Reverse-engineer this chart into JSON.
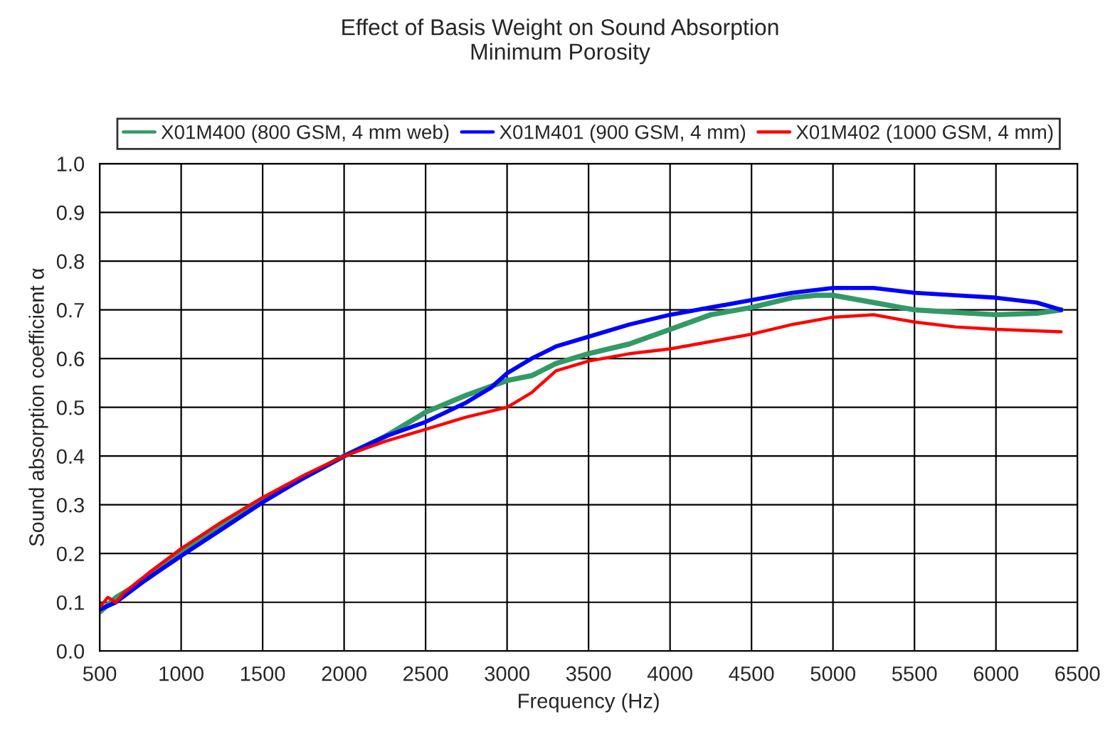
{
  "chart_data": {
    "type": "line",
    "title": "Effect of Basis Weight on Sound Absorption",
    "subtitle": "Minimum Porosity",
    "xlabel": "Frequency (Hz)",
    "ylabel": "Sound absorption coefficient α",
    "xlim": [
      500,
      6500
    ],
    "xticks": [
      500,
      1000,
      1500,
      2000,
      2500,
      3000,
      3500,
      4000,
      4500,
      5000,
      5500,
      6000,
      6500
    ],
    "ylim": [
      0,
      1
    ],
    "yticks": [
      {
        "value": 0,
        "label": "0.0"
      },
      0.1,
      0.2,
      0.3,
      0.4,
      0.5,
      0.6,
      0.7,
      0.8,
      0.9,
      {
        "value": 1,
        "label": "1.0"
      }
    ],
    "grid": true,
    "legend": "top",
    "marker": "none",
    "line_style": "solid",
    "series": [
      {
        "name": "X01M400 (800 GSM, 4 mm web)",
        "color": "#339966",
        "x": [
          500,
          600,
          800,
          1000,
          1250,
          1500,
          1750,
          2000,
          2250,
          2500,
          2750,
          3000,
          3150,
          3300,
          3500,
          3750,
          4000,
          4250,
          4500,
          4750,
          4900,
          5000,
          5250,
          5500,
          5750,
          6000,
          6250,
          6400
        ],
        "values": [
          0.08,
          0.11,
          0.15,
          0.2,
          0.26,
          0.31,
          0.355,
          0.4,
          0.44,
          0.49,
          0.525,
          0.555,
          0.565,
          0.59,
          0.61,
          0.63,
          0.66,
          0.69,
          0.705,
          0.725,
          0.73,
          0.73,
          0.715,
          0.7,
          0.695,
          0.69,
          0.693,
          0.7
        ]
      },
      {
        "name": "X01M401 (900 GSM, 4 mm)",
        "color": "#0000ff",
        "x": [
          500,
          600,
          800,
          1000,
          1250,
          1500,
          1750,
          2000,
          2250,
          2500,
          2750,
          2900,
          3000,
          3150,
          3300,
          3500,
          3750,
          4000,
          4250,
          4500,
          4750,
          5000,
          5250,
          5500,
          5750,
          6000,
          6250,
          6400
        ],
        "values": [
          0.085,
          0.1,
          0.15,
          0.195,
          0.25,
          0.305,
          0.355,
          0.4,
          0.44,
          0.47,
          0.51,
          0.54,
          0.57,
          0.6,
          0.625,
          0.645,
          0.67,
          0.69,
          0.705,
          0.72,
          0.735,
          0.745,
          0.745,
          0.735,
          0.73,
          0.725,
          0.715,
          0.7
        ]
      },
      {
        "name": "X01M402 (1000 GSM, 4 mm)",
        "color": "#ff0000",
        "x": [
          500,
          550,
          600,
          650,
          800,
          1000,
          1250,
          1500,
          1750,
          2000,
          2250,
          2500,
          2750,
          3000,
          3150,
          3300,
          3500,
          3750,
          4000,
          4250,
          4500,
          4750,
          5000,
          5250,
          5500,
          5750,
          6000,
          6400
        ],
        "values": [
          0.09,
          0.11,
          0.1,
          0.12,
          0.16,
          0.21,
          0.265,
          0.315,
          0.36,
          0.4,
          0.43,
          0.455,
          0.48,
          0.5,
          0.53,
          0.575,
          0.595,
          0.61,
          0.62,
          0.635,
          0.65,
          0.67,
          0.685,
          0.69,
          0.675,
          0.665,
          0.66,
          0.655
        ]
      }
    ]
  }
}
